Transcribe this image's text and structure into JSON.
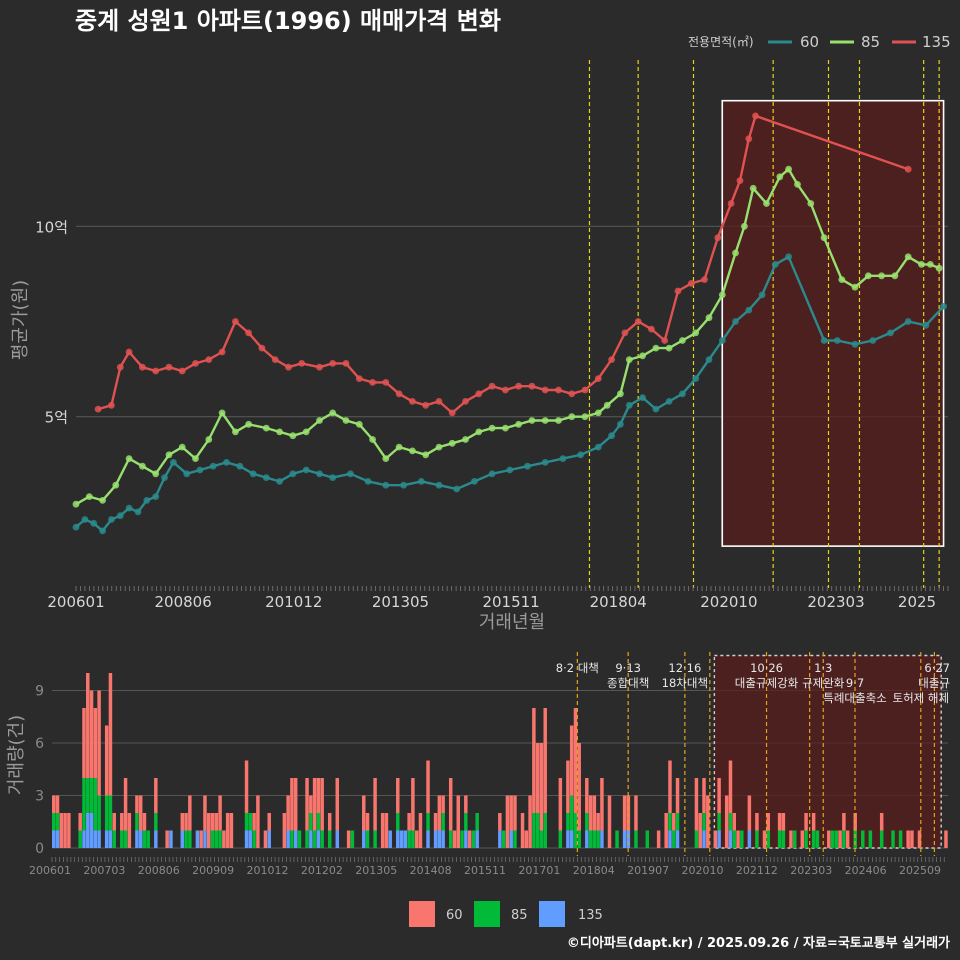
{
  "title": "중계 성원1 아파트(1996) 매매가격 변화",
  "credit": "©디아파트(dapt.kr) / 2025.09.26 / 자료=국토교통부 실거래가",
  "colors": {
    "background": "#2b2b2b",
    "s60_line": "#2a8a8c",
    "s85_line": "#98e06e",
    "s135_line": "#e05252",
    "bar60": "#f8766d",
    "bar85": "#00ba38",
    "bar135": "#619cff",
    "grid": "#555555",
    "event": "#e6d21a",
    "event_bar": "#e6a21a",
    "highlight_fill": "#5a1e1e",
    "highlight_stroke": "#ffffff"
  },
  "chart_data": [
    {
      "type": "line",
      "name": "price",
      "xlabel": "거래년월",
      "ylabel": "평균가(원)",
      "x_range": [
        2006.0,
        2025.7
      ],
      "ylim": [
        0.5,
        14.5
      ],
      "y_ticks": [
        {
          "v": 5,
          "label": "5억"
        },
        {
          "v": 10,
          "label": "10억"
        }
      ],
      "x_ticks": [
        {
          "t": 2006.0,
          "label": "200601"
        },
        {
          "t": 2008.42,
          "label": "200806"
        },
        {
          "t": 2010.92,
          "label": "201012"
        },
        {
          "t": 2013.33,
          "label": "201305"
        },
        {
          "t": 2015.83,
          "label": "201511"
        },
        {
          "t": 2018.25,
          "label": "201804"
        },
        {
          "t": 2020.75,
          "label": "202010"
        },
        {
          "t": 2023.17,
          "label": "202303"
        },
        {
          "t": 2025.0,
          "label": "2025"
        }
      ],
      "legend_title": "전용면적(㎡)",
      "legend": [
        "60",
        "85",
        "135"
      ],
      "event_lines": [
        2017.6,
        2018.7,
        2019.95,
        2021.75,
        2023.0,
        2023.7,
        2025.15,
        2025.5
      ],
      "highlight_range": {
        "x": [
          2020.6,
          2025.6
        ],
        "y": [
          1.6,
          13.3
        ]
      },
      "series": [
        {
          "name": "60",
          "points": [
            [
              2006.0,
              2.1
            ],
            [
              2006.2,
              2.3
            ],
            [
              2006.4,
              2.2
            ],
            [
              2006.6,
              2.0
            ],
            [
              2006.8,
              2.3
            ],
            [
              2007.0,
              2.4
            ],
            [
              2007.2,
              2.6
            ],
            [
              2007.4,
              2.5
            ],
            [
              2007.6,
              2.8
            ],
            [
              2007.8,
              2.9
            ],
            [
              2008.0,
              3.4
            ],
            [
              2008.2,
              3.8
            ],
            [
              2008.5,
              3.5
            ],
            [
              2008.8,
              3.6
            ],
            [
              2009.1,
              3.7
            ],
            [
              2009.4,
              3.8
            ],
            [
              2009.7,
              3.7
            ],
            [
              2010.0,
              3.5
            ],
            [
              2010.3,
              3.4
            ],
            [
              2010.6,
              3.3
            ],
            [
              2010.9,
              3.5
            ],
            [
              2011.2,
              3.6
            ],
            [
              2011.5,
              3.5
            ],
            [
              2011.8,
              3.4
            ],
            [
              2012.2,
              3.5
            ],
            [
              2012.6,
              3.3
            ],
            [
              2013.0,
              3.2
            ],
            [
              2013.4,
              3.2
            ],
            [
              2013.8,
              3.3
            ],
            [
              2014.2,
              3.2
            ],
            [
              2014.6,
              3.1
            ],
            [
              2015.0,
              3.3
            ],
            [
              2015.4,
              3.5
            ],
            [
              2015.8,
              3.6
            ],
            [
              2016.2,
              3.7
            ],
            [
              2016.6,
              3.8
            ],
            [
              2017.0,
              3.9
            ],
            [
              2017.4,
              4.0
            ],
            [
              2017.8,
              4.2
            ],
            [
              2018.1,
              4.5
            ],
            [
              2018.3,
              4.8
            ],
            [
              2018.5,
              5.3
            ],
            [
              2018.8,
              5.5
            ],
            [
              2019.1,
              5.2
            ],
            [
              2019.4,
              5.4
            ],
            [
              2019.7,
              5.6
            ],
            [
              2020.0,
              6.0
            ],
            [
              2020.3,
              6.5
            ],
            [
              2020.6,
              7.0
            ],
            [
              2020.9,
              7.5
            ],
            [
              2021.2,
              7.8
            ],
            [
              2021.5,
              8.2
            ],
            [
              2021.8,
              9.0
            ],
            [
              2022.1,
              9.2
            ],
            [
              2022.9,
              7.0
            ],
            [
              2023.2,
              7.0
            ],
            [
              2023.6,
              6.9
            ],
            [
              2024.0,
              7.0
            ],
            [
              2024.4,
              7.2
            ],
            [
              2024.8,
              7.5
            ],
            [
              2025.2,
              7.4
            ],
            [
              2025.6,
              7.9
            ]
          ]
        },
        {
          "name": "85",
          "points": [
            [
              2006.0,
              2.7
            ],
            [
              2006.3,
              2.9
            ],
            [
              2006.6,
              2.8
            ],
            [
              2006.9,
              3.2
            ],
            [
              2007.2,
              3.9
            ],
            [
              2007.5,
              3.7
            ],
            [
              2007.8,
              3.5
            ],
            [
              2008.1,
              4.0
            ],
            [
              2008.4,
              4.2
            ],
            [
              2008.7,
              3.9
            ],
            [
              2009.0,
              4.4
            ],
            [
              2009.3,
              5.1
            ],
            [
              2009.6,
              4.6
            ],
            [
              2009.9,
              4.8
            ],
            [
              2010.3,
              4.7
            ],
            [
              2010.6,
              4.6
            ],
            [
              2010.9,
              4.5
            ],
            [
              2011.2,
              4.6
            ],
            [
              2011.5,
              4.9
            ],
            [
              2011.8,
              5.1
            ],
            [
              2012.1,
              4.9
            ],
            [
              2012.4,
              4.8
            ],
            [
              2012.7,
              4.4
            ],
            [
              2013.0,
              3.9
            ],
            [
              2013.3,
              4.2
            ],
            [
              2013.6,
              4.1
            ],
            [
              2013.9,
              4.0
            ],
            [
              2014.2,
              4.2
            ],
            [
              2014.5,
              4.3
            ],
            [
              2014.8,
              4.4
            ],
            [
              2015.1,
              4.6
            ],
            [
              2015.4,
              4.7
            ],
            [
              2015.7,
              4.7
            ],
            [
              2016.0,
              4.8
            ],
            [
              2016.3,
              4.9
            ],
            [
              2016.6,
              4.9
            ],
            [
              2016.9,
              4.9
            ],
            [
              2017.2,
              5.0
            ],
            [
              2017.5,
              5.0
            ],
            [
              2017.8,
              5.1
            ],
            [
              2018.0,
              5.3
            ],
            [
              2018.3,
              5.6
            ],
            [
              2018.5,
              6.5
            ],
            [
              2018.8,
              6.6
            ],
            [
              2019.1,
              6.8
            ],
            [
              2019.4,
              6.8
            ],
            [
              2019.7,
              7.0
            ],
            [
              2020.0,
              7.2
            ],
            [
              2020.3,
              7.6
            ],
            [
              2020.6,
              8.2
            ],
            [
              2020.9,
              9.3
            ],
            [
              2021.1,
              10.0
            ],
            [
              2021.3,
              11.0
            ],
            [
              2021.6,
              10.6
            ],
            [
              2021.9,
              11.3
            ],
            [
              2022.1,
              11.5
            ],
            [
              2022.3,
              11.1
            ],
            [
              2022.6,
              10.6
            ],
            [
              2022.9,
              9.7
            ],
            [
              2023.3,
              8.6
            ],
            [
              2023.6,
              8.4
            ],
            [
              2023.9,
              8.7
            ],
            [
              2024.2,
              8.7
            ],
            [
              2024.5,
              8.7
            ],
            [
              2024.8,
              9.2
            ],
            [
              2025.1,
              9.0
            ],
            [
              2025.3,
              9.0
            ],
            [
              2025.5,
              8.9
            ]
          ]
        },
        {
          "name": "135",
          "points": [
            [
              2006.5,
              5.2
            ],
            [
              2006.8,
              5.3
            ],
            [
              2007.0,
              6.3
            ],
            [
              2007.2,
              6.7
            ],
            [
              2007.5,
              6.3
            ],
            [
              2007.8,
              6.2
            ],
            [
              2008.1,
              6.3
            ],
            [
              2008.4,
              6.2
            ],
            [
              2008.7,
              6.4
            ],
            [
              2009.0,
              6.5
            ],
            [
              2009.3,
              6.7
            ],
            [
              2009.6,
              7.5
            ],
            [
              2009.9,
              7.2
            ],
            [
              2010.2,
              6.8
            ],
            [
              2010.5,
              6.5
            ],
            [
              2010.8,
              6.3
            ],
            [
              2011.1,
              6.4
            ],
            [
              2011.5,
              6.3
            ],
            [
              2011.8,
              6.4
            ],
            [
              2012.1,
              6.4
            ],
            [
              2012.4,
              6.0
            ],
            [
              2012.7,
              5.9
            ],
            [
              2013.0,
              5.9
            ],
            [
              2013.3,
              5.6
            ],
            [
              2013.6,
              5.4
            ],
            [
              2013.9,
              5.3
            ],
            [
              2014.2,
              5.4
            ],
            [
              2014.5,
              5.1
            ],
            [
              2014.8,
              5.4
            ],
            [
              2015.1,
              5.6
            ],
            [
              2015.4,
              5.8
            ],
            [
              2015.7,
              5.7
            ],
            [
              2016.0,
              5.8
            ],
            [
              2016.3,
              5.8
            ],
            [
              2016.6,
              5.7
            ],
            [
              2016.9,
              5.7
            ],
            [
              2017.2,
              5.6
            ],
            [
              2017.5,
              5.7
            ],
            [
              2017.8,
              6.0
            ],
            [
              2018.1,
              6.5
            ],
            [
              2018.4,
              7.2
            ],
            [
              2018.7,
              7.5
            ],
            [
              2019.0,
              7.3
            ],
            [
              2019.3,
              7.0
            ],
            [
              2019.6,
              8.3
            ],
            [
              2019.9,
              8.5
            ],
            [
              2020.2,
              8.6
            ],
            [
              2020.5,
              9.7
            ],
            [
              2020.8,
              10.6
            ],
            [
              2021.0,
              11.2
            ],
            [
              2021.2,
              12.3
            ],
            [
              2021.35,
              12.9
            ],
            [
              2024.8,
              11.5
            ]
          ]
        }
      ]
    },
    {
      "type": "bar",
      "name": "volume",
      "ylabel": "거래량(건)",
      "ylim": [
        0,
        11.2
      ],
      "y_ticks": [
        0,
        3,
        6,
        9
      ],
      "x_ticks": [
        "200601",
        "200703",
        "200806",
        "200909",
        "201012",
        "201202",
        "201305",
        "201408",
        "201511",
        "201701",
        "201804",
        "201907",
        "202010",
        "202112",
        "202303",
        "202406",
        "202509"
      ],
      "legend": [
        "60",
        "85",
        "135"
      ],
      "event_lines": [
        2017.58,
        2018.7,
        2019.95,
        2020.5,
        2021.75,
        2022.7,
        2023.0,
        2023.7,
        2025.15,
        2025.45
      ],
      "highlight_range": {
        "x": [
          2020.6,
          2025.6
        ],
        "y": [
          0,
          11.0
        ]
      },
      "annotations": [
        {
          "t": 2017.58,
          "lines": [
            "8·2 대책"
          ]
        },
        {
          "t": 2018.7,
          "lines": [
            "9·13",
            "종합대책"
          ]
        },
        {
          "t": 2019.95,
          "lines": [
            "12·16",
            "18차대책"
          ]
        },
        {
          "t": 2021.75,
          "lines": [
            "10·26",
            "대출규제강화"
          ]
        },
        {
          "t": 2023.0,
          "lines": [
            "1·3",
            "규제완화"
          ]
        },
        {
          "t": 2023.7,
          "lines": [
            "",
            "9·7",
            "특례대출축소"
          ]
        },
        {
          "t": 2025.15,
          "lines": [
            "",
            "",
            "토허제 해제"
          ]
        },
        {
          "t": 2025.5,
          "lines": [
            "6·27",
            "대출규"
          ]
        }
      ]
    }
  ]
}
